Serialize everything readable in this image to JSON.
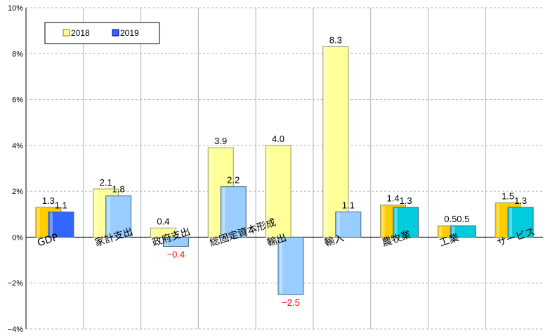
{
  "chart_data": {
    "type": "bar",
    "categories": [
      "GDP",
      "家計支出",
      "政府支出",
      "総固定資本形成",
      "輸出",
      "輸入",
      "農牧業",
      "工業",
      "サービス"
    ],
    "series": [
      {
        "name": "2018",
        "values": [
          1.3,
          2.1,
          0.4,
          3.9,
          4.0,
          8.3,
          1.4,
          0.5,
          1.5
        ]
      },
      {
        "name": "2019",
        "values": [
          1.1,
          1.8,
          -0.4,
          2.2,
          -2.5,
          1.1,
          1.3,
          0.5,
          1.3
        ]
      }
    ],
    "data_labels": {
      "2018": [
        "1.3",
        "2.1",
        "0.4",
        "3.9",
        "4.0",
        "8.3",
        "1.4",
        "0.5",
        "1.5"
      ],
      "2019": [
        "1.1",
        "1.8",
        "−0.4",
        "2.2",
        "−2.5",
        "1.1",
        "1.3",
        "0.5",
        "1.3"
      ]
    },
    "title": "",
    "xlabel": "",
    "ylabel": "",
    "ylim": [
      -4,
      10
    ],
    "yticks": [
      -4,
      -2,
      0,
      2,
      4,
      6,
      8,
      10
    ],
    "ytick_labels": [
      "−4%",
      "−2%",
      "0%",
      "2%",
      "4%",
      "6%",
      "8%",
      "10%"
    ],
    "grid": "horizontal dashed",
    "legend": "top-left",
    "colors": {
      "light_2018": "#ffff99",
      "light_2019": "#99ccff",
      "dark_2018": "#ffcc00",
      "dark_2019_gdp": "#3366ff",
      "dark_2019_sector": "#00ccdd",
      "negative_label": "#ff0000"
    }
  }
}
